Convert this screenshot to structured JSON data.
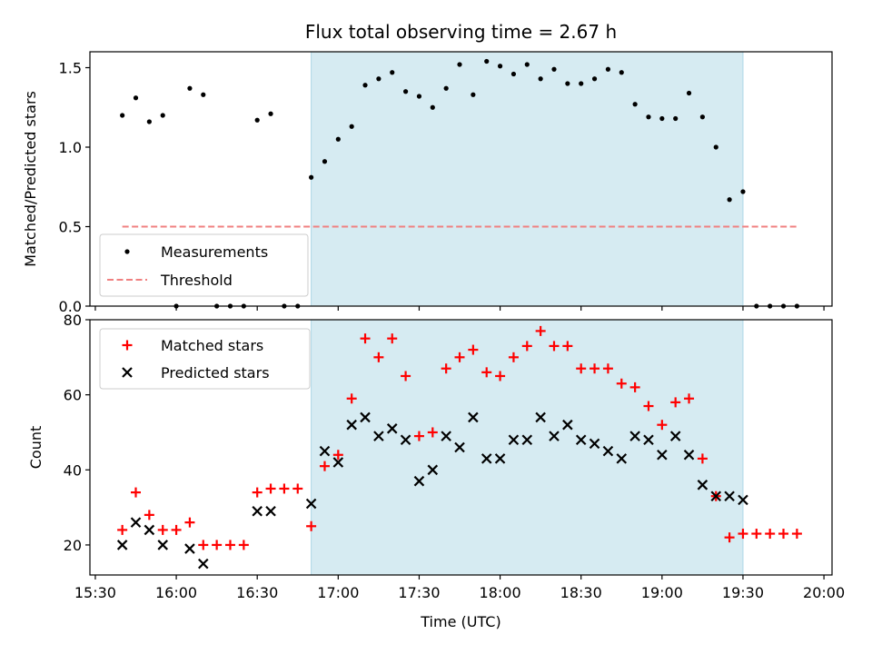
{
  "chart_data": [
    {
      "type": "scatter",
      "title": "Flux total observing time = 2.67 h",
      "ylabel": "Matched/Predicted stars",
      "xlabel": "",
      "xlim": [
        "15:28",
        "20:03"
      ],
      "ylim": [
        0,
        1.6
      ],
      "yticks": [
        0.0,
        0.5,
        1.0,
        1.5
      ],
      "yticklabels": [
        "0.0",
        "0.5",
        "1.0",
        "1.5"
      ],
      "grid": false,
      "legend_position": "lower-left",
      "shaded_interval": {
        "start": "16:50",
        "end": "19:30",
        "color": "#add8e6"
      },
      "threshold": {
        "name": "Threshold",
        "value": 0.5,
        "x_start": "15:40",
        "x_end": "19:50",
        "color": "#f08080",
        "style": "dashed"
      },
      "series": [
        {
          "name": "Measurements",
          "marker": "dot",
          "color": "#000000",
          "points": [
            [
              "15:40",
              1.2
            ],
            [
              "15:45",
              1.31
            ],
            [
              "15:50",
              1.16
            ],
            [
              "15:55",
              1.2
            ],
            [
              "16:00",
              0.0
            ],
            [
              "16:05",
              1.37
            ],
            [
              "16:10",
              1.33
            ],
            [
              "16:15",
              0.0
            ],
            [
              "16:20",
              0.0
            ],
            [
              "16:25",
              0.0
            ],
            [
              "16:30",
              1.17
            ],
            [
              "16:35",
              1.21
            ],
            [
              "16:40",
              0.0
            ],
            [
              "16:45",
              0.0
            ],
            [
              "16:50",
              0.81
            ],
            [
              "16:55",
              0.91
            ],
            [
              "17:00",
              1.05
            ],
            [
              "17:05",
              1.13
            ],
            [
              "17:10",
              1.39
            ],
            [
              "17:15",
              1.43
            ],
            [
              "17:20",
              1.47
            ],
            [
              "17:25",
              1.35
            ],
            [
              "17:30",
              1.32
            ],
            [
              "17:35",
              1.25
            ],
            [
              "17:40",
              1.37
            ],
            [
              "17:45",
              1.52
            ],
            [
              "17:50",
              1.33
            ],
            [
              "17:55",
              1.54
            ],
            [
              "18:00",
              1.51
            ],
            [
              "18:05",
              1.46
            ],
            [
              "18:10",
              1.52
            ],
            [
              "18:15",
              1.43
            ],
            [
              "18:20",
              1.49
            ],
            [
              "18:25",
              1.4
            ],
            [
              "18:30",
              1.4
            ],
            [
              "18:35",
              1.43
            ],
            [
              "18:40",
              1.49
            ],
            [
              "18:45",
              1.47
            ],
            [
              "18:50",
              1.27
            ],
            [
              "18:55",
              1.19
            ],
            [
              "19:00",
              1.18
            ],
            [
              "19:05",
              1.18
            ],
            [
              "19:10",
              1.34
            ],
            [
              "19:15",
              1.19
            ],
            [
              "19:20",
              1.0
            ],
            [
              "19:25",
              0.67
            ],
            [
              "19:30",
              0.72
            ],
            [
              "19:35",
              0.0
            ],
            [
              "19:40",
              0.0
            ],
            [
              "19:45",
              0.0
            ],
            [
              "19:50",
              0.0
            ]
          ]
        }
      ]
    },
    {
      "type": "scatter",
      "title": "",
      "ylabel": "Count",
      "xlabel": "Time (UTC)",
      "xlim": [
        "15:28",
        "20:03"
      ],
      "xticks": [
        "15:30",
        "16:00",
        "16:30",
        "17:00",
        "17:30",
        "18:00",
        "18:30",
        "19:00",
        "19:30",
        "20:00"
      ],
      "ylim": [
        12,
        80
      ],
      "yticks": [
        20,
        40,
        60,
        80
      ],
      "yticklabels": [
        "20",
        "40",
        "60",
        "80"
      ],
      "grid": false,
      "legend_position": "upper-left",
      "shaded_interval": {
        "start": "16:50",
        "end": "19:30",
        "color": "#add8e6"
      },
      "series": [
        {
          "name": "Matched stars",
          "marker": "plus",
          "color": "#ff0000",
          "points": [
            [
              "15:40",
              24
            ],
            [
              "15:45",
              34
            ],
            [
              "15:50",
              28
            ],
            [
              "15:55",
              24
            ],
            [
              "16:00",
              24
            ],
            [
              "16:05",
              26
            ],
            [
              "16:10",
              20
            ],
            [
              "16:15",
              20
            ],
            [
              "16:20",
              20
            ],
            [
              "16:25",
              20
            ],
            [
              "16:30",
              34
            ],
            [
              "16:35",
              35
            ],
            [
              "16:40",
              35
            ],
            [
              "16:45",
              35
            ],
            [
              "16:50",
              25
            ],
            [
              "16:55",
              41
            ],
            [
              "17:00",
              44
            ],
            [
              "17:05",
              59
            ],
            [
              "17:10",
              75
            ],
            [
              "17:15",
              70
            ],
            [
              "17:20",
              75
            ],
            [
              "17:25",
              65
            ],
            [
              "17:30",
              49
            ],
            [
              "17:35",
              50
            ],
            [
              "17:40",
              67
            ],
            [
              "17:45",
              70
            ],
            [
              "17:50",
              72
            ],
            [
              "17:55",
              66
            ],
            [
              "18:00",
              65
            ],
            [
              "18:05",
              70
            ],
            [
              "18:10",
              73
            ],
            [
              "18:15",
              77
            ],
            [
              "18:20",
              73
            ],
            [
              "18:25",
              73
            ],
            [
              "18:30",
              67
            ],
            [
              "18:35",
              67
            ],
            [
              "18:40",
              67
            ],
            [
              "18:45",
              63
            ],
            [
              "18:50",
              62
            ],
            [
              "18:55",
              57
            ],
            [
              "19:00",
              52
            ],
            [
              "19:05",
              58
            ],
            [
              "19:10",
              59
            ],
            [
              "19:15",
              43
            ],
            [
              "19:20",
              33
            ],
            [
              "19:25",
              22
            ],
            [
              "19:30",
              23
            ],
            [
              "19:35",
              23
            ],
            [
              "19:40",
              23
            ],
            [
              "19:45",
              23
            ],
            [
              "19:50",
              23
            ]
          ]
        },
        {
          "name": "Predicted stars",
          "marker": "x",
          "color": "#000000",
          "points": [
            [
              "15:40",
              20
            ],
            [
              "15:45",
              26
            ],
            [
              "15:50",
              24
            ],
            [
              "15:55",
              20
            ],
            [
              "16:05",
              19
            ],
            [
              "16:10",
              15
            ],
            [
              "16:30",
              29
            ],
            [
              "16:35",
              29
            ],
            [
              "16:50",
              31
            ],
            [
              "16:55",
              45
            ],
            [
              "17:00",
              42
            ],
            [
              "17:05",
              52
            ],
            [
              "17:10",
              54
            ],
            [
              "17:15",
              49
            ],
            [
              "17:20",
              51
            ],
            [
              "17:25",
              48
            ],
            [
              "17:30",
              37
            ],
            [
              "17:35",
              40
            ],
            [
              "17:40",
              49
            ],
            [
              "17:45",
              46
            ],
            [
              "17:50",
              54
            ],
            [
              "17:55",
              43
            ],
            [
              "18:00",
              43
            ],
            [
              "18:05",
              48
            ],
            [
              "18:10",
              48
            ],
            [
              "18:15",
              54
            ],
            [
              "18:20",
              49
            ],
            [
              "18:25",
              52
            ],
            [
              "18:30",
              48
            ],
            [
              "18:35",
              47
            ],
            [
              "18:40",
              45
            ],
            [
              "18:45",
              43
            ],
            [
              "18:50",
              49
            ],
            [
              "18:55",
              48
            ],
            [
              "19:00",
              44
            ],
            [
              "19:05",
              49
            ],
            [
              "19:10",
              44
            ],
            [
              "19:15",
              36
            ],
            [
              "19:20",
              33
            ],
            [
              "19:25",
              33
            ],
            [
              "19:30",
              32
            ]
          ]
        }
      ]
    }
  ]
}
